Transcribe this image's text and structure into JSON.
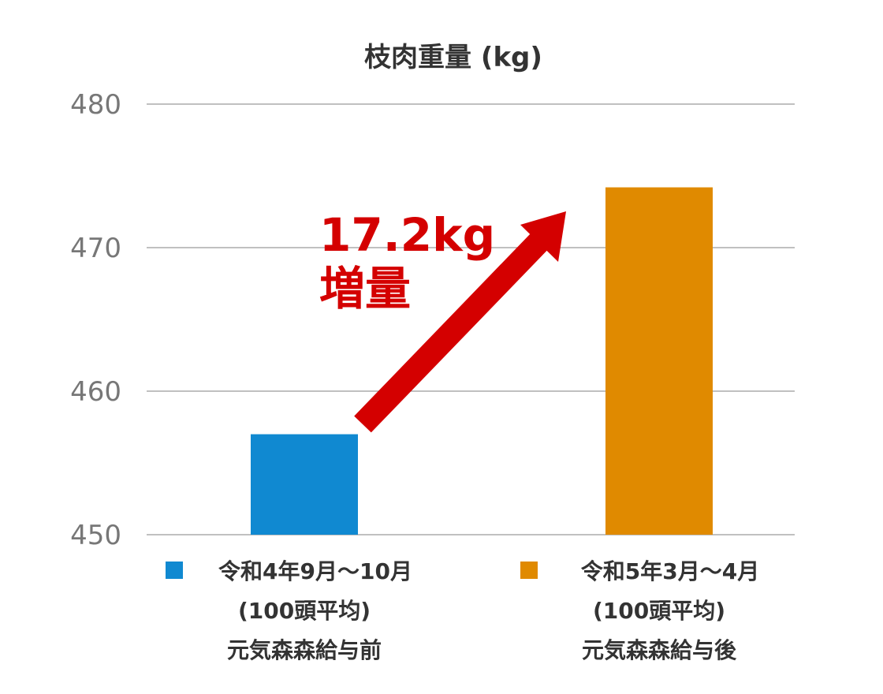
{
  "chart_data": {
    "type": "bar",
    "title": "枝肉重量 (kg)",
    "xlabel": "",
    "ylabel": "",
    "ylim": [
      450,
      480
    ],
    "yticks": [
      450,
      460,
      470,
      480
    ],
    "grid": true,
    "legend_placement": "bottom",
    "categories": [
      {
        "name": "令和4年9月～10月",
        "lines": [
          "令和4年9月～10月",
          "(100頭平均)",
          "元気森森給与前"
        ],
        "value": 457,
        "color": "#1089d1"
      },
      {
        "name": "令和5年3月～4月",
        "lines": [
          "令和5年3月～4月",
          "(100頭平均)",
          "元気森森給与後"
        ],
        "value": 474.2,
        "color": "#e08a00"
      }
    ],
    "values": [
      457,
      474.2
    ],
    "annotation": {
      "value": "17.2kg",
      "label": "増量",
      "color": "#d40000"
    }
  }
}
